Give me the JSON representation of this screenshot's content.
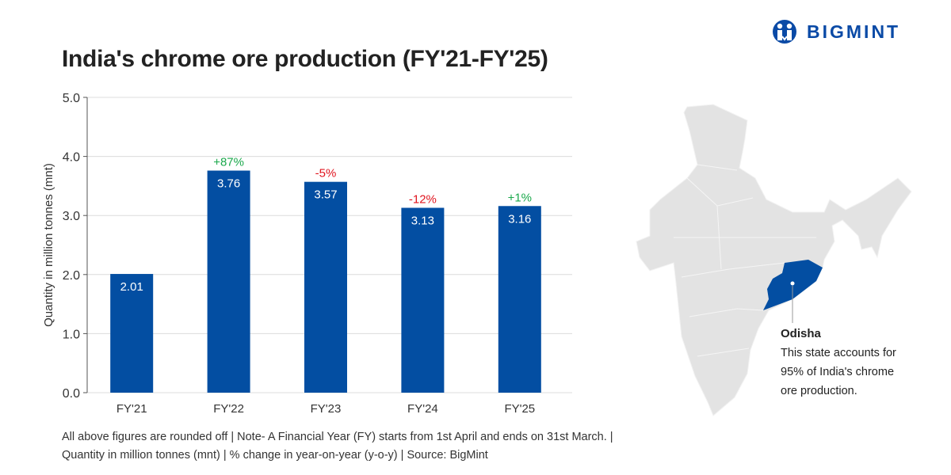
{
  "brand": {
    "name": "BIGMINT",
    "color": "#0a4aa6"
  },
  "title": "India's chrome ore production (FY'21-FY'25)",
  "chart_data": {
    "type": "bar",
    "categories": [
      "FY'21",
      "FY'22",
      "FY'23",
      "FY'24",
      "FY'25"
    ],
    "values": [
      2.01,
      3.76,
      3.57,
      3.13,
      3.16
    ],
    "value_labels": [
      "2.01",
      "3.76",
      "3.57",
      "3.13",
      "3.16"
    ],
    "change_labels": [
      "",
      "+87%",
      "-5%",
      "-12%",
      "+1%"
    ],
    "change_colors": {
      "positive": "#1aa84b",
      "negative": "#e0141e"
    },
    "bar_color": "#034ea2",
    "ylabel": "Quantity in million tonnes (mnt)",
    "xlabel": "",
    "ylim": [
      0,
      5
    ],
    "yticks": [
      "0.0",
      "1.0",
      "2.0",
      "3.0",
      "4.0",
      "5.0"
    ],
    "grid": true
  },
  "map": {
    "highlight_state": "Odisha",
    "highlight_color": "#034ea2",
    "base_color": "#e3e3e3",
    "callout_title": "Odisha",
    "callout_lines": [
      "This state accounts for",
      "95% of India's chrome",
      "ore production."
    ]
  },
  "footnote": {
    "line1": "All above figures are rounded off | Note- A Financial Year (FY) starts from 1st April and ends on 31st March. |",
    "line2": "Quantity in million tonnes (mnt) | % change in year-on-year (y-o-y) | Source: BigMint"
  }
}
